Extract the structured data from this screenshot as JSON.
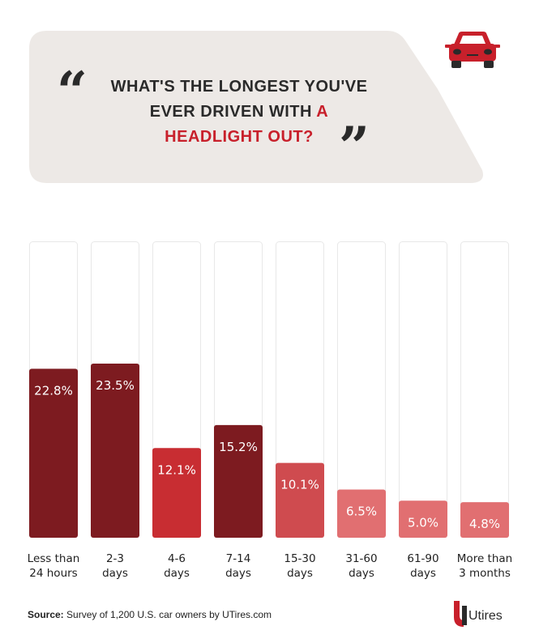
{
  "header": {
    "title_part1": "WHAT'S THE LONGEST YOU'VE",
    "title_part2": "EVER DRIVEN WITH ",
    "title_part3": "A",
    "title_part4": "HEADLIGHT OUT?",
    "open_quote": "“",
    "close_quote": "”"
  },
  "colors": {
    "bubble": "#ede9e6",
    "dark_red": "#7d1b20",
    "red": "#c82d32",
    "medium_red": "#cf4b4f",
    "light_red": "#e16f71",
    "track_border": "#e8e8e8",
    "accent": "#c8202b"
  },
  "chart_data": {
    "type": "bar",
    "categories": [
      "Less than 24 hours",
      "2-3 days",
      "4-6 days",
      "7-14 days",
      "15-30 days",
      "31-60 days",
      "61-90 days",
      "More than 3 months"
    ],
    "category_lines": [
      [
        "Less than",
        "24 hours"
      ],
      [
        "2-3",
        "days"
      ],
      [
        "4-6",
        "days"
      ],
      [
        "7-14",
        "days"
      ],
      [
        "15-30",
        "days"
      ],
      [
        "31-60",
        "days"
      ],
      [
        "61-90",
        "days"
      ],
      [
        "More than",
        "3 months"
      ]
    ],
    "values": [
      22.8,
      23.5,
      12.1,
      15.2,
      10.1,
      6.5,
      5.0,
      4.8
    ],
    "value_labels": [
      "22.8%",
      "23.5%",
      "12.1%",
      "15.2%",
      "10.1%",
      "6.5%",
      "5.0%",
      "4.8%"
    ],
    "bar_colors": [
      "#7d1b20",
      "#7d1b20",
      "#c82d32",
      "#7d1b20",
      "#cf4b4f",
      "#e16f71",
      "#e16f71",
      "#e16f71"
    ],
    "ylim": [
      0,
      40
    ],
    "xlabel": "",
    "ylabel": "",
    "grid": false
  },
  "footer": {
    "source_label": "Source:",
    "source_text": " Survey of 1,200 U.S. car owners by UTires.com",
    "logo_text": "Utires"
  }
}
